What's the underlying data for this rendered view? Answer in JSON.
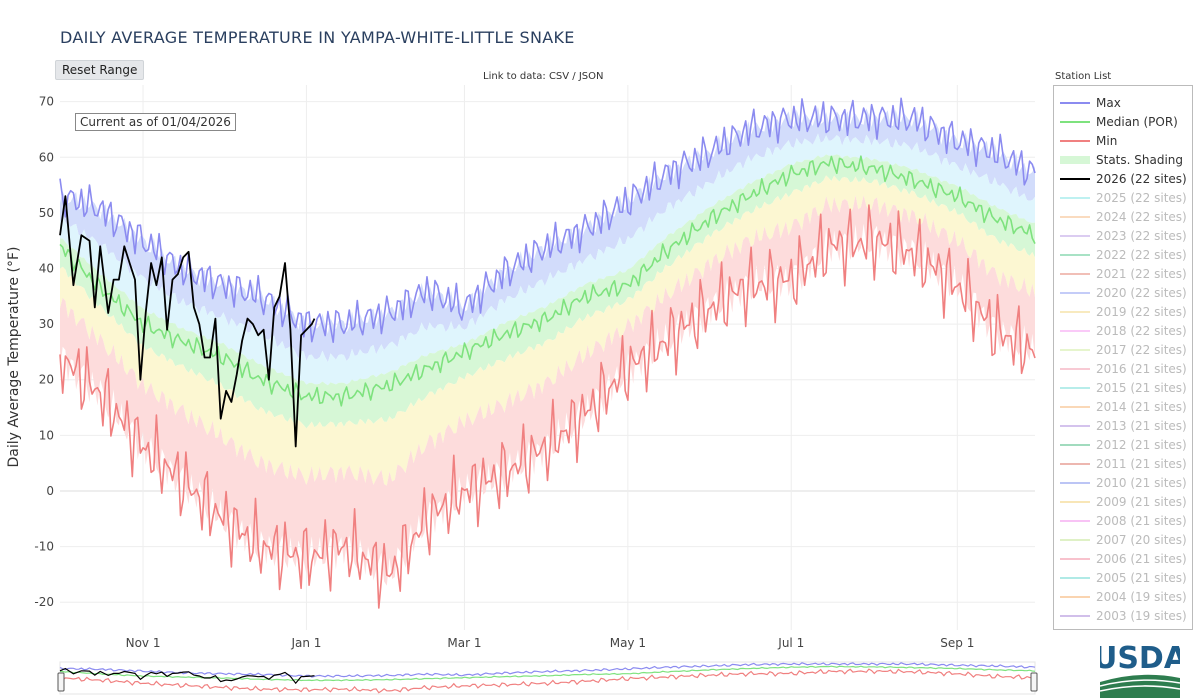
{
  "title": "DAILY AVERAGE TEMPERATURE IN YAMPA-WHITE-LITTLE SNAKE",
  "reset_button": "Reset Range",
  "data_link": "Link to data: CSV / JSON",
  "station_list_title": "Station List",
  "current_note": "Current as of 01/04/2026",
  "usda_logo_text": "USDA",
  "colors": {
    "max": "#8b8bf0",
    "median": "#7ee27e",
    "min": "#f08080",
    "current": "#000000",
    "band_hi": "#d2dcfb",
    "band_midhi": "#dff5fd",
    "band_mid": "#d6f7d6",
    "band_midlo": "#fcf7d2",
    "band_lo": "#fddcdc"
  },
  "legend": [
    {
      "label": "Max",
      "color": "#8b8bf0",
      "active": true,
      "kind": "line"
    },
    {
      "label": "Median (POR)",
      "color": "#7ee27e",
      "active": true,
      "kind": "line"
    },
    {
      "label": "Min",
      "color": "#f08080",
      "active": true,
      "kind": "line"
    },
    {
      "label": "Stats. Shading",
      "color": "#d6f7d6",
      "active": true,
      "kind": "band"
    },
    {
      "label": "2026 (22 sites)",
      "color": "#000000",
      "active": true,
      "kind": "line"
    },
    {
      "label": "2025 (22 sites)",
      "color": "#6fe0e0",
      "active": false,
      "kind": "line"
    },
    {
      "label": "2024 (22 sites)",
      "color": "#f5b070",
      "active": false,
      "kind": "line"
    },
    {
      "label": "2023 (22 sites)",
      "color": "#b08de0",
      "active": false,
      "kind": "line"
    },
    {
      "label": "2022 (22 sites)",
      "color": "#3fbf7f",
      "active": false,
      "kind": "line"
    },
    {
      "label": "2021 (22 sites)",
      "color": "#e07060",
      "active": false,
      "kind": "line"
    },
    {
      "label": "2020 (22 sites)",
      "color": "#7c8ef0",
      "active": false,
      "kind": "line"
    },
    {
      "label": "2019 (22 sites)",
      "color": "#f0d070",
      "active": false,
      "kind": "line"
    },
    {
      "label": "2018 (22 sites)",
      "color": "#f58af0",
      "active": false,
      "kind": "line"
    },
    {
      "label": "2017 (22 sites)",
      "color": "#c8e890",
      "active": false,
      "kind": "line"
    },
    {
      "label": "2016 (21 sites)",
      "color": "#f08aa0",
      "active": false,
      "kind": "line"
    },
    {
      "label": "2015 (21 sites)",
      "color": "#5fd8d0",
      "active": false,
      "kind": "line"
    },
    {
      "label": "2014 (21 sites)",
      "color": "#f5a860",
      "active": false,
      "kind": "line"
    },
    {
      "label": "2013 (21 sites)",
      "color": "#a07ad8",
      "active": false,
      "kind": "line"
    },
    {
      "label": "2012 (21 sites)",
      "color": "#2faf6f",
      "active": false,
      "kind": "line"
    },
    {
      "label": "2011 (21 sites)",
      "color": "#d86050",
      "active": false,
      "kind": "line"
    },
    {
      "label": "2010 (21 sites)",
      "color": "#6a7ee8",
      "active": false,
      "kind": "line"
    },
    {
      "label": "2009 (21 sites)",
      "color": "#f0c860",
      "active": false,
      "kind": "line"
    },
    {
      "label": "2008 (21 sites)",
      "color": "#f07ae8",
      "active": false,
      "kind": "line"
    },
    {
      "label": "2007 (20 sites)",
      "color": "#b8e080",
      "active": false,
      "kind": "line"
    },
    {
      "label": "2006 (21 sites)",
      "color": "#f07890",
      "active": false,
      "kind": "line"
    },
    {
      "label": "2005 (21 sites)",
      "color": "#50d0c8",
      "active": false,
      "kind": "line"
    },
    {
      "label": "2004 (19 sites)",
      "color": "#f5a050",
      "active": false,
      "kind": "line"
    },
    {
      "label": "2003 (19 sites)",
      "color": "#9870d0",
      "active": false,
      "kind": "line"
    }
  ],
  "chart_data": {
    "type": "line",
    "title": "DAILY AVERAGE TEMPERATURE IN YAMPA-WHITE-LITTLE SNAKE",
    "xlabel": "",
    "ylabel": "Daily Average Temperature (°F)",
    "x_unit": "date",
    "xlim": [
      "10-01",
      "09-30"
    ],
    "ylim": [
      -25,
      73
    ],
    "yticks": [
      -20,
      -10,
      0,
      10,
      20,
      30,
      40,
      50,
      60,
      70
    ],
    "xticks": [
      {
        "label": "Nov 1",
        "x": "11-01"
      },
      {
        "label": "Jan 1",
        "x": "01-01"
      },
      {
        "label": "Mar 1",
        "x": "03-01"
      },
      {
        "label": "May 1",
        "x": "05-01"
      },
      {
        "label": "Jul 1",
        "x": "07-01"
      },
      {
        "label": "Sep 1",
        "x": "09-01"
      }
    ],
    "grid": true,
    "legend_position": "right",
    "series": [
      {
        "name": "Max",
        "x": [
          "10-01",
          "10-15",
          "11-01",
          "11-15",
          "12-01",
          "12-15",
          "01-01",
          "01-15",
          "02-01",
          "02-15",
          "03-01",
          "03-15",
          "04-01",
          "04-15",
          "05-01",
          "05-15",
          "06-01",
          "06-15",
          "07-01",
          "07-15",
          "08-01",
          "08-15",
          "09-01",
          "09-15",
          "09-30"
        ],
        "y": [
          53,
          51,
          45,
          40,
          37,
          35,
          30,
          30,
          32,
          36,
          33,
          39,
          44,
          47,
          52,
          57,
          61,
          65,
          67,
          67,
          67,
          67,
          63,
          61,
          57
        ]
      },
      {
        "name": "Median (POR)",
        "x": [
          "10-01",
          "10-15",
          "11-01",
          "11-15",
          "12-01",
          "12-15",
          "01-01",
          "01-15",
          "02-01",
          "02-15",
          "03-01",
          "03-15",
          "04-01",
          "04-15",
          "05-01",
          "05-15",
          "06-01",
          "06-15",
          "07-01",
          "07-15",
          "08-01",
          "08-15",
          "09-01",
          "09-15",
          "09-30"
        ],
        "y": [
          44,
          37,
          30,
          27,
          24,
          20,
          17,
          17,
          19,
          22,
          25,
          28,
          31,
          35,
          37,
          43,
          49,
          53,
          57,
          59,
          58,
          56,
          53,
          49,
          46
        ]
      },
      {
        "name": "Min",
        "x": [
          "10-01",
          "10-15",
          "11-01",
          "11-15",
          "12-01",
          "12-15",
          "01-01",
          "01-15",
          "02-01",
          "02-15",
          "03-01",
          "03-15",
          "04-01",
          "04-15",
          "05-01",
          "05-15",
          "06-01",
          "06-15",
          "07-01",
          "07-15",
          "08-01",
          "08-15",
          "09-01",
          "09-15",
          "09-30"
        ],
        "y": [
          24,
          18,
          8,
          2,
          -5,
          -10,
          -12,
          -10,
          -15,
          -5,
          0,
          3,
          8,
          14,
          22,
          27,
          33,
          37,
          38,
          44,
          45,
          43,
          37,
          29,
          25
        ]
      },
      {
        "name": "2026 (22 sites)",
        "x": [
          "10-01",
          "10-03",
          "10-06",
          "10-09",
          "10-12",
          "10-14",
          "10-16",
          "10-19",
          "10-21",
          "10-23",
          "10-25",
          "10-27",
          "10-29",
          "10-31",
          "11-02",
          "11-04",
          "11-06",
          "11-08",
          "11-10",
          "11-12",
          "11-14",
          "11-16",
          "11-18",
          "11-20",
          "11-22",
          "11-24",
          "11-26",
          "11-28",
          "11-30",
          "12-02",
          "12-04",
          "12-06",
          "12-08",
          "12-10",
          "12-12",
          "12-14",
          "12-16",
          "12-18",
          "12-20",
          "12-22",
          "12-24",
          "12-26",
          "12-28",
          "12-30",
          "01-01",
          "01-03",
          "01-04"
        ],
        "y": [
          46,
          53,
          37,
          46,
          45,
          33,
          44,
          32,
          38,
          38,
          44,
          41,
          38,
          20,
          32,
          41,
          37,
          42,
          29,
          38,
          39,
          42,
          43,
          33,
          30,
          24,
          24,
          31,
          13,
          18,
          16,
          21,
          27,
          31,
          30,
          28,
          29,
          20,
          33,
          35,
          41,
          29,
          8,
          28,
          29,
          30,
          31
        ]
      }
    ]
  },
  "navigator": {
    "handles": true
  }
}
